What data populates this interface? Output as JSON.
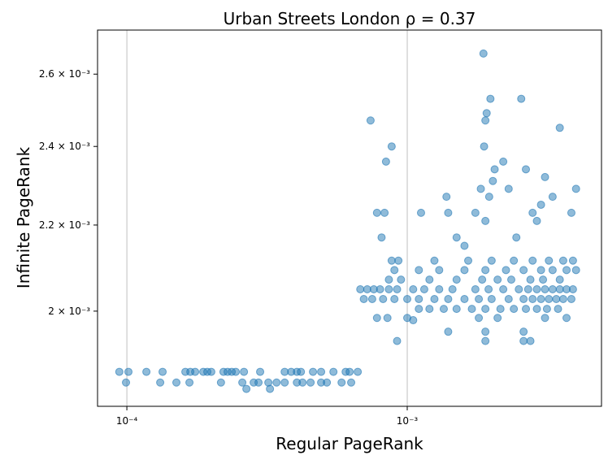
{
  "chart_data": {
    "type": "scatter",
    "title": "Urban Streets London    ρ = 0.37",
    "x_label": "Regular PageRank",
    "y_label": "Infinite PageRank",
    "x_scale": "log",
    "y_scale": "log",
    "grid": "x",
    "color": "#1f77b4",
    "xlim": [
      7.86e-05,
      0.00493
    ],
    "ylim": [
      0.0018,
      0.00273
    ],
    "xticks": [
      {
        "value": 0.0001,
        "label": "10⁻⁴"
      },
      {
        "value": 0.001,
        "label": "10⁻³"
      }
    ],
    "yticks": [
      {
        "value": 0.002,
        "label": "2 × 10⁻³"
      },
      {
        "value": 0.0022,
        "label": "2.2 × 10⁻³"
      },
      {
        "value": 0.0024,
        "label": "2.4 × 10⁻³"
      },
      {
        "value": 0.0026,
        "label": "2.6 × 10⁻³"
      }
    ],
    "x": [
      9.4e-05,
      0.0001013,
      0.0001174,
      0.0001341,
      0.0001617,
      0.0001684,
      0.0001752,
      0.0001873,
      0.0001936,
      0.0002,
      0.0002211,
      0.0002287,
      0.0002366,
      0.0002446,
      0.0002616,
      0.0002988,
      0.0003655,
      0.0003856,
      0.000404,
      0.0004176,
      0.0004612,
      0.000493,
      0.0005454,
      0.000603,
      0.000623,
      0.000666,
      9.93e-05,
      0.0001315,
      0.0001502,
      0.0001672,
      0.0002166,
      0.0002581,
      0.0002834,
      0.0002948,
      0.0003196,
      0.0003419,
      0.0003655,
      0.000404,
      0.0004232,
      0.0004522,
      0.000493,
      0.0005168,
      0.0005832,
      0.000631,
      0.0002669,
      0.0003239,
      0.00068,
      0.00072,
      0.00076,
      0.0008,
      0.00086,
      0.00092,
      0.00105,
      0.00115,
      0.0013,
      0.00145,
      0.00175,
      0.00195,
      0.0022,
      0.0025,
      0.0027,
      0.0029,
      0.0031,
      0.0033,
      0.0035,
      0.0037,
      0.0039,
      0.0007,
      0.00075,
      0.00082,
      0.0009,
      0.001,
      0.0011,
      0.00125,
      0.0014,
      0.0016,
      0.0018,
      0.002,
      0.0023,
      0.0026,
      0.0028,
      0.003,
      0.0032,
      0.0034,
      0.0036,
      0.00385,
      0.0011,
      0.0012,
      0.00135,
      0.0015,
      0.0017,
      0.0019,
      0.00215,
      0.0024,
      0.00265,
      0.0029,
      0.00315,
      0.00345,
      0.00086,
      0.00095,
      0.0012,
      0.0015,
      0.00185,
      0.0021,
      0.00235,
      0.00275,
      0.00305,
      0.0035,
      0.0009,
      0.0011,
      0.0013,
      0.0016,
      0.0019,
      0.00225,
      0.0026,
      0.003,
      0.0033,
      0.0037,
      0.004,
      0.00088,
      0.00093,
      0.00125,
      0.00165,
      0.002,
      0.0024,
      0.0028,
      0.0032,
      0.0036,
      0.0039,
      0.00078,
      0.00085,
      0.001,
      0.0018,
      0.0021,
      0.0031,
      0.0037,
      0.00074,
      0.00078,
      0.00083,
      0.00081,
      0.00084,
      0.00088,
      0.00112,
      0.00138,
      0.0014,
      0.0015,
      0.0016,
      0.00175,
      0.00183,
      0.00187,
      0.0019,
      0.00192,
      0.00198,
      0.00188,
      0.00205,
      0.00202,
      0.00196,
      0.0022,
      0.0023,
      0.00255,
      0.00265,
      0.0028,
      0.003,
      0.0031,
      0.0033,
      0.0035,
      0.00385,
      0.004,
      0.00245,
      0.0029,
      0.0019,
      0.00092,
      0.0019,
      0.0026,
      0.00275,
      0.0014,
      0.0019,
      0.0026,
      0.00105
    ],
    "values": [
      0.00187,
      0.00187,
      0.00187,
      0.00187,
      0.00187,
      0.00187,
      0.00187,
      0.00187,
      0.00187,
      0.00187,
      0.00187,
      0.00187,
      0.00187,
      0.00187,
      0.00187,
      0.00187,
      0.00187,
      0.00187,
      0.00187,
      0.00187,
      0.00187,
      0.00187,
      0.00187,
      0.00187,
      0.00187,
      0.00187,
      0.001848,
      0.001848,
      0.001848,
      0.001848,
      0.001848,
      0.001848,
      0.001848,
      0.001848,
      0.001848,
      0.001848,
      0.001848,
      0.001848,
      0.001848,
      0.001848,
      0.001848,
      0.001848,
      0.001848,
      0.001848,
      0.001835,
      0.001835,
      0.002049,
      0.002049,
      0.002049,
      0.002049,
      0.002049,
      0.002049,
      0.002049,
      0.002049,
      0.002049,
      0.002049,
      0.002049,
      0.002049,
      0.002049,
      0.002049,
      0.002049,
      0.002049,
      0.002049,
      0.002049,
      0.002049,
      0.002049,
      0.002049,
      0.002027,
      0.002027,
      0.002027,
      0.002027,
      0.002027,
      0.002027,
      0.002027,
      0.002027,
      0.002027,
      0.002027,
      0.002027,
      0.002027,
      0.002027,
      0.002027,
      0.002027,
      0.002027,
      0.002027,
      0.002027,
      0.002027,
      0.002005,
      0.002005,
      0.002005,
      0.002005,
      0.002005,
      0.002005,
      0.002005,
      0.002005,
      0.002005,
      0.002005,
      0.002005,
      0.002005,
      0.002071,
      0.002071,
      0.002071,
      0.002071,
      0.002071,
      0.002071,
      0.002071,
      0.002071,
      0.002071,
      0.002071,
      0.002093,
      0.002093,
      0.002093,
      0.002093,
      0.002093,
      0.002093,
      0.002093,
      0.002093,
      0.002093,
      0.002093,
      0.002093,
      0.002115,
      0.002115,
      0.002115,
      0.002115,
      0.002115,
      0.002115,
      0.002115,
      0.002115,
      0.002115,
      0.002115,
      0.001985,
      0.001985,
      0.001985,
      0.001985,
      0.001985,
      0.001985,
      0.001985,
      0.00247,
      0.00223,
      0.00223,
      0.00217,
      0.00236,
      0.0024,
      0.00223,
      0.00227,
      0.00223,
      0.00217,
      0.00215,
      0.00223,
      0.00229,
      0.00266,
      0.00247,
      0.00249,
      0.00253,
      0.0024,
      0.00234,
      0.00231,
      0.00227,
      0.00236,
      0.00229,
      0.00253,
      0.00234,
      0.00223,
      0.00225,
      0.00232,
      0.00227,
      0.00245,
      0.00223,
      0.00229,
      0.00217,
      0.00221,
      0.00221,
      0.001935,
      0.001935,
      0.001935,
      0.001935,
      0.001955,
      0.001955,
      0.001955,
      0.00198
    ]
  }
}
